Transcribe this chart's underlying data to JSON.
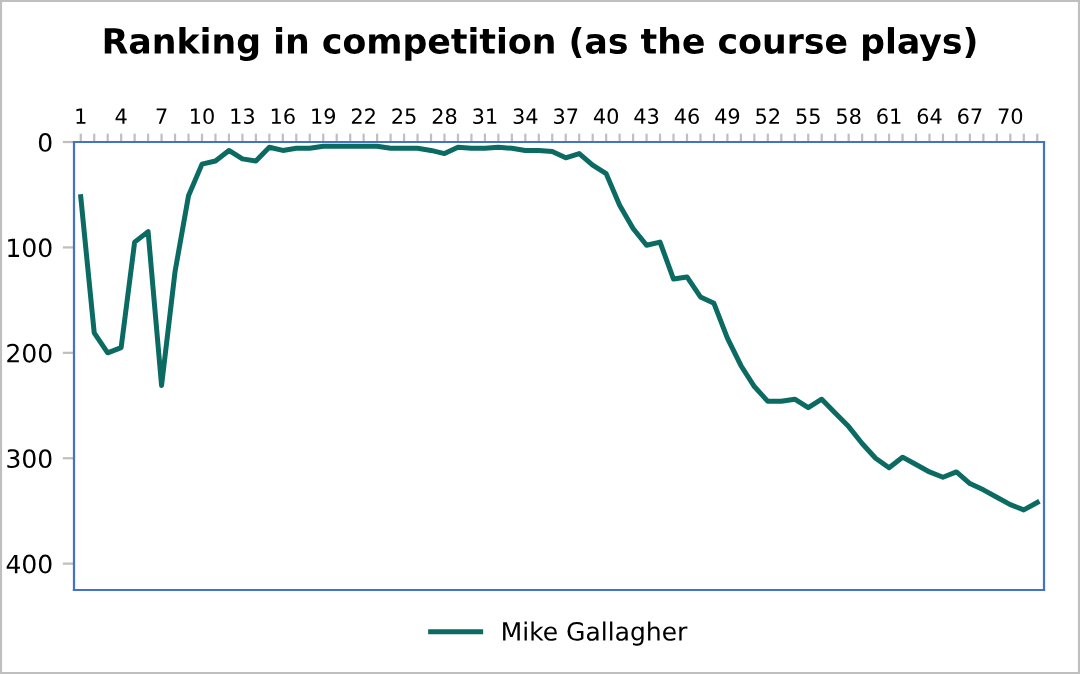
{
  "chart_data": {
    "type": "line",
    "title": "Ranking in competition (as the course plays)",
    "categories": [
      "1",
      null,
      null,
      "4",
      null,
      null,
      "7",
      null,
      null,
      "10",
      null,
      null,
      "13",
      null,
      null,
      "16",
      null,
      null,
      "19",
      null,
      null,
      "22",
      null,
      null,
      "25",
      null,
      null,
      "28",
      null,
      null,
      "31",
      null,
      null,
      "34",
      null,
      null,
      "37",
      null,
      null,
      "40",
      null,
      null,
      "43",
      null,
      null,
      "46",
      null,
      null,
      "49",
      null,
      null,
      "52",
      null,
      null,
      "55",
      null,
      null,
      "58",
      null,
      null,
      "61",
      null,
      null,
      "64",
      null,
      null,
      "67",
      null,
      null,
      "70",
      null,
      null
    ],
    "series": [
      {
        "name": "Mike Gallagher",
        "color": "#0b6b62",
        "values": [
          52,
          181,
          200,
          195,
          95,
          85,
          231,
          123,
          51,
          21,
          18,
          8,
          16,
          18,
          5,
          8,
          6,
          6,
          4,
          4,
          4,
          4,
          4,
          6,
          6,
          6,
          8,
          11,
          5,
          6,
          6,
          5,
          6,
          8,
          8,
          9,
          15,
          11,
          22,
          30,
          60,
          82,
          98,
          95,
          130,
          128,
          147,
          153,
          186,
          212,
          232,
          246,
          246,
          244,
          252,
          244,
          257,
          270,
          286,
          300,
          309,
          299,
          306,
          313,
          318,
          313,
          324,
          330,
          337,
          344,
          349,
          342
        ]
      }
    ],
    "ylim": [
      425,
      0
    ],
    "yticks": [
      0,
      100,
      200,
      300,
      400
    ],
    "grid": false,
    "legend": "bottom",
    "marker": "none",
    "line_style": "solid"
  }
}
